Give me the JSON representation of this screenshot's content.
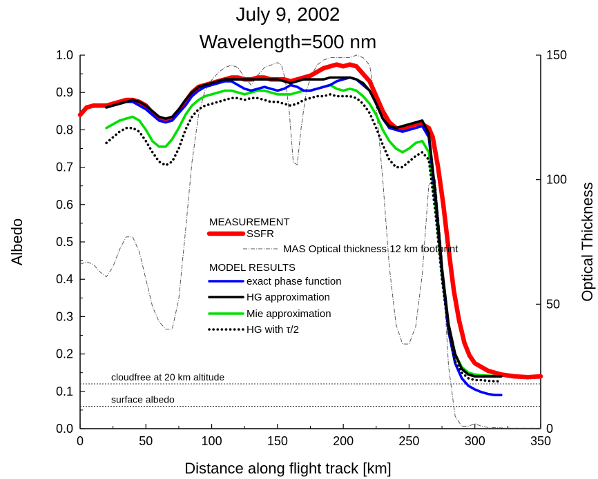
{
  "chart_data": {
    "type": "line",
    "title": "July 9, 2002",
    "subtitle": "Wavelength=500 nm",
    "xlabel": "Distance along flight track [km]",
    "ylabel": "Albedo",
    "y2label": "Optical Thickness",
    "xlim": [
      0,
      350
    ],
    "ylim": [
      0,
      1.0
    ],
    "y2lim": [
      0,
      150
    ],
    "x_ticks": [
      0,
      50,
      100,
      150,
      200,
      250,
      300,
      350
    ],
    "y_ticks": [
      0.0,
      0.1,
      0.2,
      0.3,
      0.4,
      0.5,
      0.6,
      0.7,
      0.8,
      0.9,
      1.0
    ],
    "y_tick_labels": [
      "0.0",
      "0.1",
      "0.2",
      "0.3",
      "0.4",
      "0.5",
      "0.6",
      "0.7",
      "0.8",
      "0.9",
      "1.0"
    ],
    "y2_ticks": [
      0,
      50,
      100,
      150
    ],
    "grid": false,
    "legend": {
      "placement": "center",
      "header_measurement": "MEASUREMENT",
      "header_model": "MODEL RESULTS"
    },
    "hlines": [
      {
        "y": 0.12,
        "label": "cloudfree at 20 km altitude"
      },
      {
        "y": 0.06,
        "label": "surface albedo"
      }
    ],
    "series": [
      {
        "name": "SSFR",
        "axis": "left",
        "color": "#ff0000",
        "style": "thick",
        "x": [
          0,
          5,
          10,
          15,
          20,
          25,
          30,
          35,
          40,
          45,
          50,
          55,
          60,
          65,
          70,
          75,
          80,
          85,
          90,
          95,
          100,
          105,
          110,
          115,
          120,
          125,
          130,
          135,
          140,
          145,
          150,
          155,
          160,
          165,
          170,
          175,
          180,
          185,
          190,
          195,
          200,
          205,
          210,
          215,
          220,
          225,
          230,
          235,
          240,
          245,
          250,
          255,
          260,
          265,
          268,
          272,
          276,
          280,
          284,
          288,
          292,
          296,
          300,
          305,
          310,
          315,
          320,
          330,
          340,
          350
        ],
        "values": [
          0.84,
          0.86,
          0.865,
          0.865,
          0.865,
          0.87,
          0.875,
          0.88,
          0.88,
          0.875,
          0.865,
          0.845,
          0.83,
          0.825,
          0.83,
          0.85,
          0.875,
          0.9,
          0.915,
          0.92,
          0.925,
          0.93,
          0.935,
          0.94,
          0.94,
          0.935,
          0.935,
          0.94,
          0.94,
          0.935,
          0.935,
          0.935,
          0.93,
          0.935,
          0.94,
          0.945,
          0.955,
          0.965,
          0.97,
          0.975,
          0.97,
          0.975,
          0.97,
          0.95,
          0.93,
          0.89,
          0.85,
          0.82,
          0.805,
          0.8,
          0.81,
          0.815,
          0.815,
          0.805,
          0.78,
          0.7,
          0.6,
          0.48,
          0.37,
          0.29,
          0.23,
          0.195,
          0.175,
          0.165,
          0.155,
          0.15,
          0.145,
          0.14,
          0.138,
          0.14
        ]
      },
      {
        "name": "MAS Optical thickness 12 km footprint",
        "axis": "right",
        "color": "#555555",
        "style": "dashdot",
        "x": [
          0,
          5,
          10,
          15,
          20,
          25,
          30,
          35,
          40,
          45,
          50,
          55,
          60,
          65,
          70,
          75,
          80,
          85,
          90,
          95,
          100,
          105,
          110,
          115,
          120,
          125,
          130,
          135,
          140,
          145,
          150,
          153,
          156,
          159,
          162,
          165,
          168,
          172,
          176,
          180,
          185,
          190,
          195,
          200,
          205,
          210,
          215,
          220,
          225,
          230,
          235,
          240,
          245,
          250,
          255,
          260,
          265,
          270,
          275,
          280,
          285,
          290,
          295,
          300,
          305,
          310,
          320,
          330,
          350
        ],
        "values": [
          66,
          67,
          66,
          63,
          61,
          65,
          72,
          77,
          77,
          71,
          60,
          49,
          43,
          40,
          40,
          52,
          79,
          107,
          126,
          136,
          140,
          143,
          145,
          146,
          145,
          141,
          138,
          142,
          145,
          146,
          147,
          146,
          140,
          127,
          107,
          106,
          121,
          136,
          142,
          146,
          148,
          149,
          149,
          149,
          149,
          150,
          149,
          146,
          130,
          100,
          65,
          42,
          34,
          34,
          41,
          62,
          98,
          100,
          70,
          25,
          5,
          1,
          1,
          2,
          1,
          0.5,
          0.3,
          0.2,
          0.2
        ]
      },
      {
        "name": "exact phase function",
        "axis": "left",
        "color": "#0000ff",
        "style": "solid",
        "x": [
          20,
          25,
          30,
          35,
          40,
          45,
          50,
          55,
          60,
          65,
          70,
          75,
          80,
          85,
          90,
          95,
          100,
          105,
          110,
          115,
          120,
          125,
          130,
          135,
          140,
          145,
          150,
          155,
          160,
          165,
          170,
          175,
          180,
          185,
          190,
          195,
          200,
          205,
          210,
          215,
          220,
          225,
          230,
          235,
          240,
          245,
          250,
          255,
          260,
          265,
          270,
          275,
          280,
          285,
          290,
          295,
          300,
          305,
          310,
          315,
          320
        ],
        "values": [
          0.86,
          0.865,
          0.87,
          0.875,
          0.875,
          0.865,
          0.855,
          0.84,
          0.825,
          0.82,
          0.825,
          0.845,
          0.865,
          0.89,
          0.905,
          0.915,
          0.92,
          0.925,
          0.93,
          0.93,
          0.92,
          0.91,
          0.905,
          0.91,
          0.915,
          0.91,
          0.905,
          0.91,
          0.92,
          0.915,
          0.905,
          0.905,
          0.91,
          0.915,
          0.92,
          0.93,
          0.935,
          0.94,
          0.935,
          0.92,
          0.905,
          0.87,
          0.83,
          0.805,
          0.8,
          0.795,
          0.8,
          0.805,
          0.81,
          0.78,
          0.62,
          0.42,
          0.26,
          0.175,
          0.135,
          0.115,
          0.105,
          0.098,
          0.093,
          0.09,
          0.09
        ]
      },
      {
        "name": "HG approximation",
        "axis": "left",
        "color": "#000000",
        "style": "solid",
        "x": [
          20,
          25,
          30,
          35,
          40,
          45,
          50,
          55,
          60,
          65,
          70,
          75,
          80,
          85,
          90,
          95,
          100,
          105,
          110,
          115,
          120,
          125,
          130,
          135,
          140,
          145,
          150,
          155,
          160,
          165,
          170,
          175,
          180,
          185,
          190,
          195,
          200,
          205,
          210,
          215,
          220,
          225,
          230,
          235,
          240,
          245,
          250,
          255,
          260,
          265,
          270,
          275,
          280,
          285,
          290,
          295,
          300,
          305,
          310,
          315,
          320
        ],
        "values": [
          0.86,
          0.865,
          0.87,
          0.875,
          0.88,
          0.875,
          0.865,
          0.85,
          0.835,
          0.83,
          0.835,
          0.855,
          0.88,
          0.9,
          0.915,
          0.92,
          0.925,
          0.93,
          0.935,
          0.935,
          0.935,
          0.935,
          0.935,
          0.935,
          0.935,
          0.935,
          0.935,
          0.93,
          0.925,
          0.93,
          0.935,
          0.935,
          0.935,
          0.935,
          0.94,
          0.94,
          0.94,
          0.94,
          0.935,
          0.925,
          0.905,
          0.87,
          0.83,
          0.81,
          0.805,
          0.81,
          0.815,
          0.82,
          0.825,
          0.79,
          0.63,
          0.43,
          0.28,
          0.2,
          0.16,
          0.145,
          0.14,
          0.14,
          0.14,
          0.14,
          0.14
        ]
      },
      {
        "name": "Mie approximation",
        "axis": "left",
        "color": "#00e000",
        "style": "solid",
        "x": [
          20,
          25,
          30,
          35,
          40,
          45,
          50,
          55,
          60,
          65,
          70,
          75,
          80,
          85,
          90,
          95,
          100,
          105,
          110,
          115,
          120,
          125,
          130,
          135,
          140,
          145,
          150,
          155,
          160,
          165,
          170,
          175,
          180,
          185,
          190,
          195,
          200,
          205,
          210,
          215,
          220,
          225,
          230,
          235,
          240,
          245,
          250,
          255,
          260,
          265,
          270,
          275,
          280,
          285,
          290,
          295,
          300,
          305,
          310,
          315,
          320
        ],
        "values": [
          0.805,
          0.815,
          0.825,
          0.83,
          0.835,
          0.825,
          0.8,
          0.77,
          0.755,
          0.755,
          0.775,
          0.805,
          0.84,
          0.865,
          0.88,
          0.89,
          0.895,
          0.9,
          0.905,
          0.905,
          0.9,
          0.895,
          0.9,
          0.905,
          0.905,
          0.9,
          0.895,
          0.895,
          0.895,
          0.9,
          0.905,
          0.905,
          0.91,
          0.915,
          0.92,
          0.91,
          0.905,
          0.91,
          0.905,
          0.89,
          0.87,
          0.84,
          0.8,
          0.77,
          0.75,
          0.74,
          0.75,
          0.765,
          0.77,
          0.74,
          0.6,
          0.41,
          0.27,
          0.2,
          0.165,
          0.15,
          0.145,
          0.143,
          0.142,
          0.141,
          0.14
        ]
      },
      {
        "name": "HG with τ/2",
        "axis": "left",
        "color": "#000000",
        "style": "dotted",
        "x": [
          20,
          25,
          30,
          35,
          40,
          45,
          50,
          55,
          60,
          65,
          70,
          75,
          80,
          85,
          90,
          95,
          100,
          105,
          110,
          115,
          120,
          125,
          130,
          135,
          140,
          145,
          150,
          155,
          160,
          165,
          170,
          175,
          180,
          185,
          190,
          195,
          200,
          205,
          210,
          215,
          220,
          225,
          230,
          235,
          240,
          245,
          250,
          255,
          260,
          265,
          270,
          275,
          280,
          285,
          290,
          295,
          300,
          305,
          310,
          315,
          320
        ],
        "values": [
          0.765,
          0.78,
          0.795,
          0.805,
          0.805,
          0.795,
          0.77,
          0.74,
          0.715,
          0.705,
          0.715,
          0.75,
          0.8,
          0.835,
          0.855,
          0.865,
          0.87,
          0.875,
          0.88,
          0.885,
          0.885,
          0.88,
          0.885,
          0.885,
          0.88,
          0.875,
          0.875,
          0.87,
          0.865,
          0.87,
          0.88,
          0.885,
          0.89,
          0.89,
          0.895,
          0.89,
          0.89,
          0.89,
          0.885,
          0.87,
          0.845,
          0.805,
          0.76,
          0.72,
          0.7,
          0.7,
          0.715,
          0.73,
          0.74,
          0.72,
          0.58,
          0.4,
          0.26,
          0.18,
          0.15,
          0.135,
          0.13,
          0.13,
          0.128,
          0.127,
          0.127
        ]
      }
    ]
  }
}
